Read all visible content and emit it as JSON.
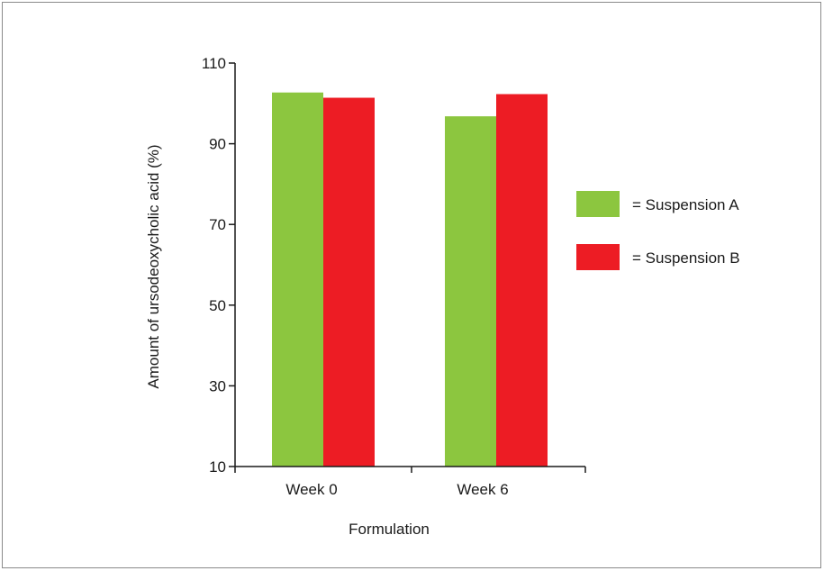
{
  "chart_data": {
    "type": "bar",
    "title": "",
    "xlabel": "Formulation",
    "ylabel": "Amount of ursodeoxycholic acid (%)",
    "categories": [
      "Week 0",
      "Week 6"
    ],
    "ylim": [
      10,
      110
    ],
    "yticks": [
      10,
      30,
      50,
      70,
      90,
      110
    ],
    "grid": false,
    "legend_position": "right",
    "series": [
      {
        "name": "Suspension A",
        "legend_label": "= Suspension A",
        "color": "#8cc63f",
        "values": [
          102.7,
          96.8
        ]
      },
      {
        "name": "Suspension B",
        "legend_label": "= Suspension B",
        "color": "#ed1c24",
        "values": [
          101.4,
          102.3
        ]
      }
    ]
  }
}
